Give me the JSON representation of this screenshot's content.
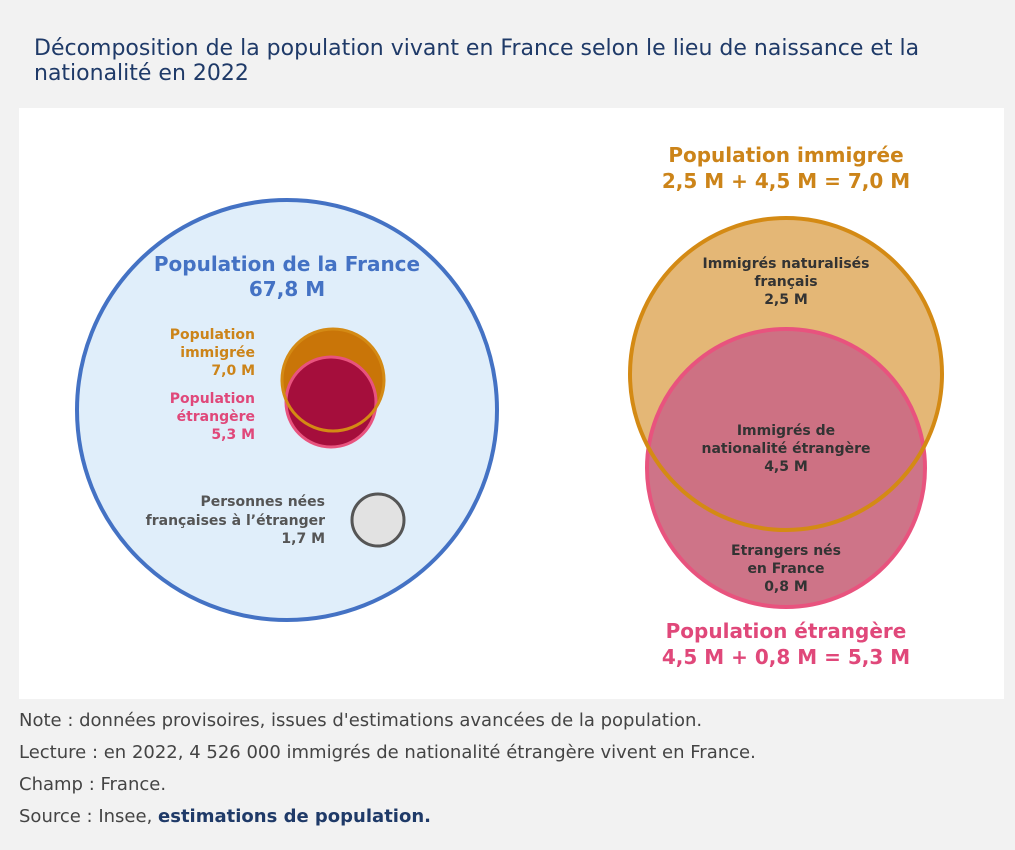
{
  "title": "Décomposition de la population vivant en France selon le lieu de naissance et la nationalité en 2022",
  "colors": {
    "blue": "#4472c4",
    "blue_fill": "#e0eefa",
    "orange": "#d48a14",
    "orange_text": "#cc8419",
    "orange_fill": "#e4b776",
    "pink": "#e8537e",
    "pink_text": "#e0487a",
    "pink_fill": "#cc6e83",
    "crimson": "#a50e3c",
    "dark_orange": "#c97508",
    "grey_fill": "#e2e2e2",
    "grey_stroke": "#555555",
    "dark_text": "#333333",
    "grey_text": "#555555"
  },
  "diagram": {
    "left": {
      "main_title": "Population de la France",
      "main_value": "67,8 M",
      "immigree_label": [
        "Population",
        "immigrée",
        "7,0 M"
      ],
      "etrangere_label": [
        "Population",
        "étrangère",
        "5,3 M"
      ],
      "nees_label": [
        "Personnes nées",
        "françaises à l’étranger",
        "1,7 M"
      ]
    },
    "right": {
      "top_title": "Population immigrée",
      "top_formula": "2,5 M + 4,5 M = 7,0 M",
      "naturalises_label": [
        "Immigrés naturalisés",
        "français",
        "2,5 M"
      ],
      "nationalite_label": [
        "Immigrés de",
        "nationalité étrangère",
        "4,5 M"
      ],
      "etrangers_label": [
        "Etrangers nés",
        "en France",
        "0,8 M"
      ],
      "bottom_title": "Population étrangère",
      "bottom_formula": "4,5 M + 0,8 M = 5,3 M"
    }
  },
  "notes": {
    "note": "Note : données provisoires, issues d'estimations avancées de la population.",
    "lecture": "Lecture : en 2022, 4 526 000 immigrés de nationalité étrangère vivent en France.",
    "champ": "Champ : France.",
    "source_prefix": "Source : Insee, ",
    "source_link": "estimations de population."
  }
}
